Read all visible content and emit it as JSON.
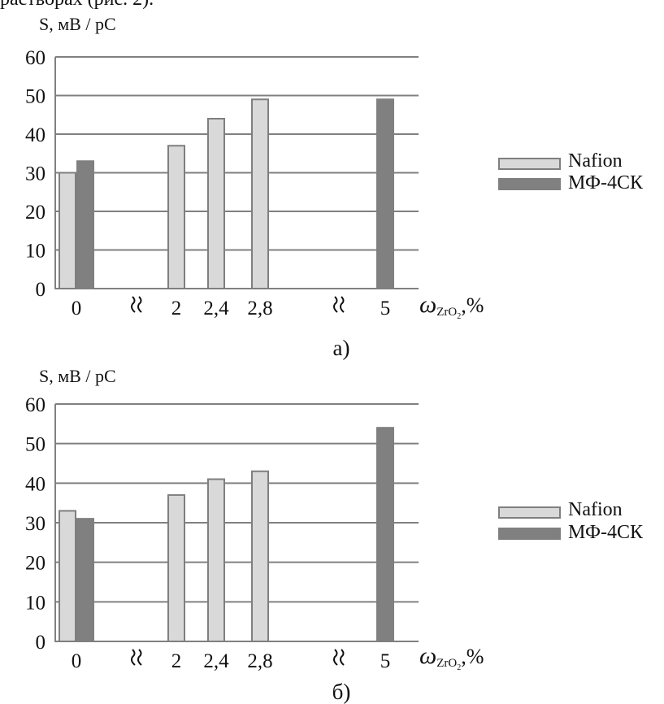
{
  "heading_fragment": "растворах (рис. 2).",
  "colors": {
    "nafion": "#d9d9d9",
    "mf4sk": "#808080",
    "bar_outline": "#7f7f7f",
    "axis": "#808080",
    "grid": "#808080"
  },
  "chart_data": [
    {
      "type": "bar",
      "panel_label": "а)",
      "ylabel": "S, мВ / pC",
      "ylim": [
        0,
        60
      ],
      "yticks": [
        "0",
        "10",
        "20",
        "30",
        "40",
        "50",
        "60"
      ],
      "xlabel": {
        "main": "ω",
        "sub": "ZrO",
        "sub2": "2",
        "suffix": ",%"
      },
      "categories": [
        "0",
        "2",
        "2,4",
        "2,8",
        "5"
      ],
      "axis_breaks": [
        1,
        4
      ],
      "series": [
        {
          "name": "Nafion",
          "values": [
            30,
            37,
            44,
            49,
            null
          ]
        },
        {
          "name": "МФ-4СК",
          "values": [
            33,
            null,
            null,
            null,
            49
          ]
        }
      ],
      "legend": {
        "position": "right",
        "labels": [
          "Nafion",
          "МФ-4СК"
        ]
      }
    },
    {
      "type": "bar",
      "panel_label": "б)",
      "ylabel": "S, мВ / pC",
      "ylim": [
        0,
        60
      ],
      "yticks": [
        "0",
        "10",
        "20",
        "30",
        "40",
        "50",
        "60"
      ],
      "xlabel": {
        "main": "ω",
        "sub": "ZrO",
        "sub2": "2",
        "suffix": ",%"
      },
      "categories": [
        "0",
        "2",
        "2,4",
        "2,8",
        "5"
      ],
      "axis_breaks": [
        1,
        4
      ],
      "series": [
        {
          "name": "Nafion",
          "values": [
            33,
            37,
            41,
            43,
            null
          ]
        },
        {
          "name": "МФ-4СК",
          "values": [
            31,
            null,
            null,
            null,
            54
          ]
        }
      ],
      "legend": {
        "position": "right",
        "labels": [
          "Nafion",
          "МФ-4СК"
        ]
      }
    }
  ]
}
